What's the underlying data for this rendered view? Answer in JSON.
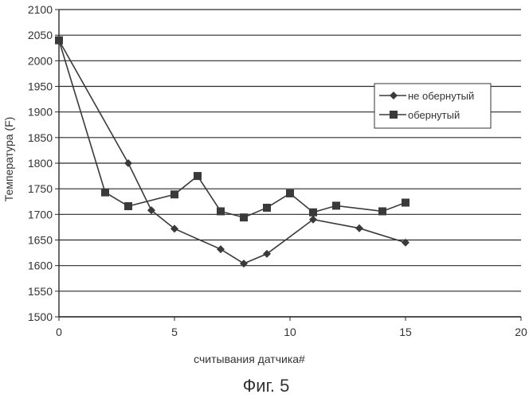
{
  "chart_data": {
    "type": "line",
    "title": "",
    "xlabel": "считывания датчика#",
    "ylabel": "Температура (F)",
    "xlim": [
      0,
      20
    ],
    "ylim": [
      1500,
      2100
    ],
    "x_ticks": [
      0,
      5,
      10,
      15,
      20
    ],
    "y_ticks": [
      1500,
      1550,
      1600,
      1650,
      1700,
      1750,
      1800,
      1850,
      1900,
      1950,
      2000,
      2050,
      2100
    ],
    "grid": "horizontal",
    "legend_position": "right",
    "series": [
      {
        "name": "не обернутый",
        "marker": "diamond",
        "points": [
          [
            0,
            2040
          ],
          [
            3,
            1800
          ],
          [
            4,
            1708
          ],
          [
            5,
            1672
          ],
          [
            7,
            1632
          ],
          [
            8,
            1604
          ],
          [
            9,
            1623
          ],
          [
            11,
            1690
          ],
          [
            13,
            1673
          ],
          [
            15,
            1645
          ]
        ]
      },
      {
        "name": "обернутый",
        "marker": "square",
        "points": [
          [
            0,
            2040
          ],
          [
            2,
            1743
          ],
          [
            3,
            1716
          ],
          [
            5,
            1739
          ],
          [
            6,
            1775
          ],
          [
            7,
            1706
          ],
          [
            8,
            1694
          ],
          [
            9,
            1713
          ],
          [
            10,
            1741
          ],
          [
            11,
            1704
          ],
          [
            12,
            1717
          ],
          [
            14,
            1706
          ],
          [
            15,
            1723
          ]
        ]
      }
    ]
  },
  "caption": "Фиг. 5",
  "colors": {
    "line": "#3a3a3a",
    "grid": "#2a2a2a",
    "background": "#ffffff"
  }
}
